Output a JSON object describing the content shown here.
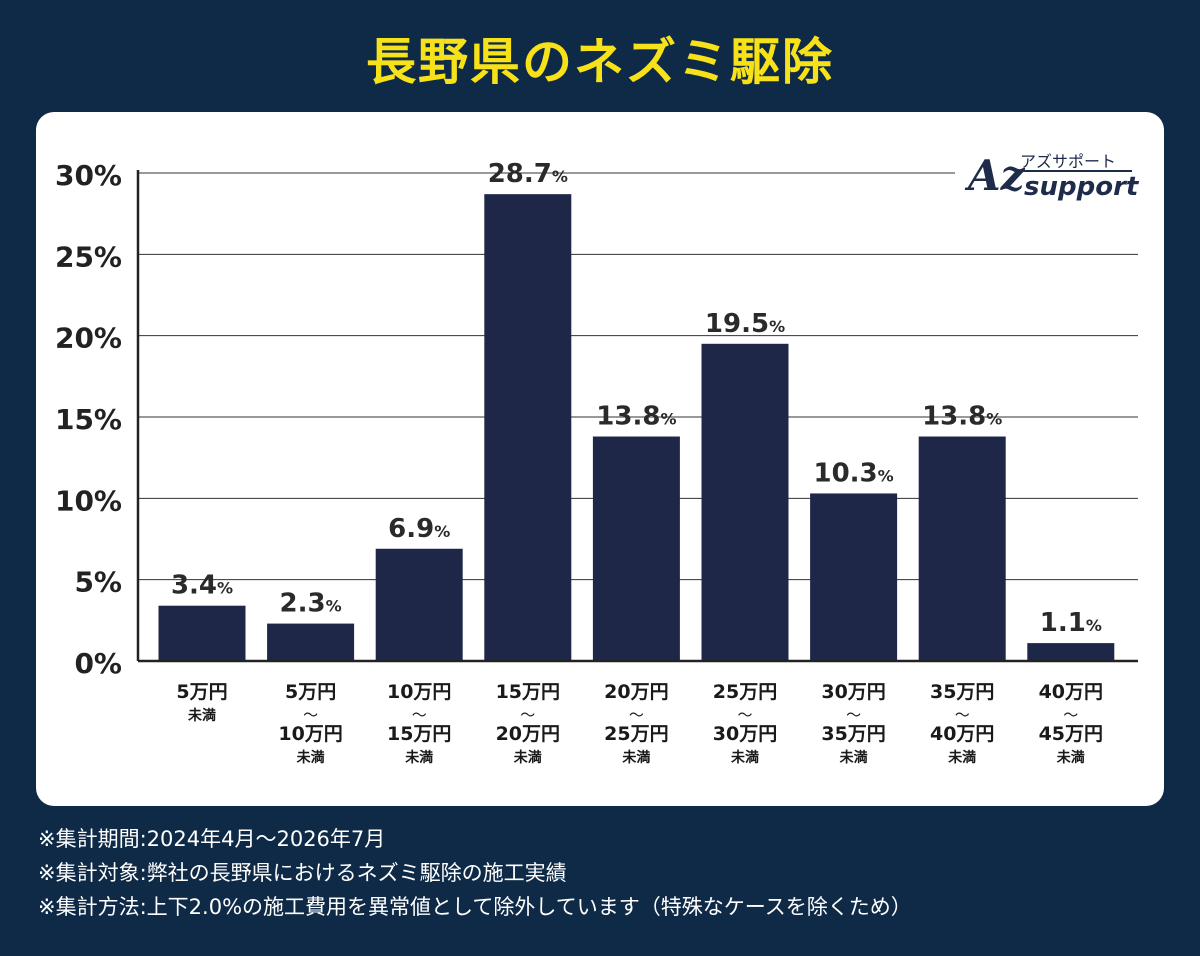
{
  "title": "長野県のネズミ駆除",
  "logo": {
    "kana": "アズサポート",
    "word": "support",
    "mark": "Az"
  },
  "notes": [
    "※集計期間:2024年4月〜2026年7月",
    "※集計対象:弊社の長野県におけるネズミ駆除の施工実績",
    "※集計方法:上下2.0%の施工費用を異常値として除外しています（特殊なケースを除くため）"
  ],
  "colors": {
    "background": "#0f2a47",
    "title": "#f7e21a",
    "bar": "#1f2749",
    "card": "#ffffff"
  },
  "chart_data": {
    "type": "bar",
    "categories": [
      [
        "5万円",
        "未満"
      ],
      [
        "5万円",
        "〜",
        "10万円",
        "未満"
      ],
      [
        "10万円",
        "〜",
        "15万円",
        "未満"
      ],
      [
        "15万円",
        "〜",
        "20万円",
        "未満"
      ],
      [
        "20万円",
        "〜",
        "25万円",
        "未満"
      ],
      [
        "25万円",
        "〜",
        "30万円",
        "未満"
      ],
      [
        "30万円",
        "〜",
        "35万円",
        "未満"
      ],
      [
        "35万円",
        "〜",
        "40万円",
        "未満"
      ],
      [
        "40万円",
        "〜",
        "45万円",
        "未満"
      ]
    ],
    "values": [
      3.4,
      2.3,
      6.9,
      28.7,
      13.8,
      19.5,
      10.3,
      13.8,
      1.1
    ],
    "value_unit": "%",
    "yticks": [
      "0%",
      "5%",
      "10%",
      "15%",
      "20%",
      "25%",
      "30%"
    ],
    "ylim": [
      0,
      30
    ],
    "grid": true
  }
}
